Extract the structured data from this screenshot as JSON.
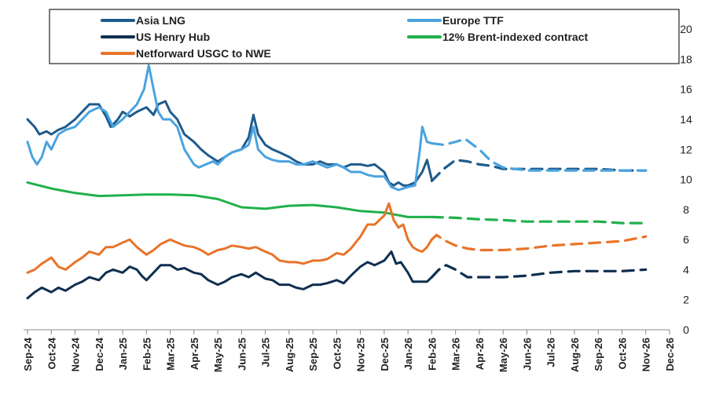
{
  "chart_data": {
    "type": "line",
    "title": "",
    "xlabel": "",
    "ylabel": "",
    "ylim": [
      0,
      21
    ],
    "yticks": [
      0,
      2,
      4,
      6,
      8,
      10,
      12,
      14,
      16,
      18,
      20
    ],
    "xlim": [
      0,
      27
    ],
    "grid": false,
    "legend_position": "top-left",
    "categories": [
      "Sep-24",
      "Oct-24",
      "Nov-24",
      "Dec-24",
      "Jan-25",
      "Feb-25",
      "Mar-25",
      "Apr-25",
      "May-25",
      "Jun-25",
      "Jul-25",
      "Aug-25",
      "Sep-25",
      "Oct-25",
      "Nov-25",
      "Dec-25",
      "Jan-26",
      "Feb-26",
      "Mar-26",
      "Apr-26",
      "May-26",
      "Jun-26",
      "Jul-26",
      "Aug-26",
      "Sep-26",
      "Oct-26",
      "Nov-26",
      "Dec-26"
    ],
    "series": [
      {
        "name": "Asia LNG",
        "color": "#1f5b8c",
        "style": "solid",
        "x": [
          0,
          0.3,
          0.5,
          0.8,
          1.0,
          1.3,
          1.6,
          2.0,
          2.3,
          2.6,
          3.0,
          3.3,
          3.5,
          3.8,
          4.0,
          4.3,
          4.6,
          5.0,
          5.3,
          5.5,
          5.8,
          6.0,
          6.3,
          6.6,
          7.0,
          7.3,
          7.6,
          8.0,
          8.3,
          8.6,
          9.0,
          9.3,
          9.5,
          9.7,
          10.0,
          10.3,
          10.6,
          11.0,
          11.3,
          11.6,
          12.0,
          12.3,
          12.6,
          13.0,
          13.3,
          13.6,
          14.0,
          14.3,
          14.6,
          15.0,
          15.2,
          15.4,
          15.6,
          15.8,
          16.0,
          16.3,
          16.6,
          16.8,
          17.0
        ],
        "y": [
          14.0,
          13.5,
          13.0,
          13.2,
          13.0,
          13.3,
          13.5,
          14.0,
          14.5,
          15.0,
          15.0,
          14.2,
          13.5,
          14.0,
          14.5,
          14.2,
          14.5,
          14.8,
          14.3,
          15.0,
          15.2,
          14.5,
          14.0,
          13.0,
          12.5,
          12.0,
          11.6,
          11.2,
          11.5,
          11.8,
          12.0,
          12.8,
          14.3,
          13.0,
          12.3,
          12.0,
          11.8,
          11.5,
          11.2,
          11.0,
          11.0,
          11.2,
          11.0,
          11.0,
          10.8,
          11.0,
          11.0,
          10.9,
          11.0,
          10.5,
          9.8,
          9.6,
          9.8,
          9.6,
          9.6,
          9.8,
          10.5,
          11.3,
          10.0
        ]
      },
      {
        "name": "Asia LNG (forward)",
        "color": "#1f5b8c",
        "style": "dashed",
        "x": [
          17.0,
          17.5,
          18.0,
          18.5,
          19.0,
          19.5,
          20.0,
          21.0,
          22.0,
          23.0,
          24.0,
          25.0,
          26.0
        ],
        "y": [
          9.9,
          10.7,
          11.3,
          11.2,
          11.0,
          10.9,
          10.7,
          10.7,
          10.7,
          10.7,
          10.7,
          10.6,
          10.6
        ]
      },
      {
        "name": "Europe TTF",
        "color": "#4aa3df",
        "style": "solid",
        "x": [
          0,
          0.2,
          0.4,
          0.6,
          0.8,
          1.0,
          1.3,
          1.6,
          2.0,
          2.3,
          2.6,
          3.0,
          3.3,
          3.6,
          4.0,
          4.3,
          4.6,
          4.9,
          5.1,
          5.3,
          5.5,
          5.7,
          6.0,
          6.3,
          6.6,
          7.0,
          7.2,
          7.5,
          7.8,
          8.0,
          8.3,
          8.6,
          9.0,
          9.3,
          9.5,
          9.7,
          10.0,
          10.3,
          10.6,
          11.0,
          11.3,
          11.6,
          12.0,
          12.3,
          12.6,
          13.0,
          13.3,
          13.6,
          14.0,
          14.3,
          14.6,
          15.0,
          15.3,
          15.6,
          16.0,
          16.3,
          16.5,
          16.6,
          16.8,
          17.0
        ],
        "y": [
          12.5,
          11.5,
          11.0,
          11.5,
          12.5,
          12.0,
          13.0,
          13.3,
          13.5,
          14.0,
          14.5,
          14.8,
          14.5,
          13.5,
          14.0,
          14.5,
          15.0,
          16.0,
          17.6,
          16.0,
          14.5,
          14.0,
          14.0,
          13.5,
          12.0,
          11.0,
          10.8,
          11.0,
          11.2,
          11.0,
          11.5,
          11.8,
          12.0,
          12.3,
          13.5,
          12.0,
          11.5,
          11.3,
          11.2,
          11.2,
          11.0,
          11.0,
          11.2,
          11.0,
          10.8,
          11.0,
          10.8,
          10.5,
          10.5,
          10.3,
          10.2,
          10.2,
          9.5,
          9.3,
          9.5,
          9.6,
          12.0,
          13.5,
          12.5,
          12.4
        ]
      },
      {
        "name": "Europe TTF (forward)",
        "color": "#4aa3df",
        "style": "dashed",
        "x": [
          17.0,
          17.5,
          18.0,
          18.4,
          19.0,
          19.5,
          20.0,
          21.0,
          22.0,
          23.0,
          24.0,
          25.0,
          26.0
        ],
        "y": [
          12.4,
          12.3,
          12.5,
          12.7,
          12.0,
          11.2,
          10.8,
          10.6,
          10.6,
          10.6,
          10.6,
          10.6,
          10.6
        ]
      },
      {
        "name": "US Henry Hub",
        "color": "#0f2f50",
        "style": "solid",
        "x": [
          0,
          0.3,
          0.6,
          1.0,
          1.3,
          1.6,
          2.0,
          2.3,
          2.6,
          3.0,
          3.3,
          3.6,
          4.0,
          4.3,
          4.6,
          4.8,
          5.0,
          5.3,
          5.6,
          6.0,
          6.3,
          6.6,
          7.0,
          7.3,
          7.6,
          8.0,
          8.3,
          8.6,
          9.0,
          9.3,
          9.6,
          10.0,
          10.3,
          10.6,
          11.0,
          11.3,
          11.6,
          12.0,
          12.3,
          12.6,
          13.0,
          13.3,
          13.6,
          14.0,
          14.3,
          14.6,
          15.0,
          15.3,
          15.5,
          15.7,
          16.0,
          16.2,
          16.4,
          16.6,
          16.8,
          17.0
        ],
        "y": [
          2.1,
          2.5,
          2.8,
          2.5,
          2.8,
          2.6,
          3.0,
          3.2,
          3.5,
          3.3,
          3.8,
          4.0,
          3.8,
          4.2,
          4.0,
          3.6,
          3.3,
          3.8,
          4.3,
          4.3,
          4.0,
          4.1,
          3.8,
          3.7,
          3.3,
          3.0,
          3.2,
          3.5,
          3.7,
          3.5,
          3.8,
          3.4,
          3.3,
          3.0,
          3.0,
          2.8,
          2.7,
          3.0,
          3.0,
          3.1,
          3.3,
          3.1,
          3.6,
          4.2,
          4.5,
          4.3,
          4.6,
          5.2,
          4.4,
          4.5,
          3.8,
          3.2,
          3.2,
          3.2,
          3.2,
          3.5
        ]
      },
      {
        "name": "US Henry Hub (forward)",
        "color": "#0f2f50",
        "style": "dashed",
        "x": [
          17.0,
          17.3,
          17.6,
          18.0,
          18.5,
          19.0,
          20.0,
          21.0,
          22.0,
          23.0,
          24.0,
          25.0,
          26.0
        ],
        "y": [
          3.5,
          4.0,
          4.3,
          4.0,
          3.5,
          3.5,
          3.5,
          3.6,
          3.8,
          3.9,
          3.9,
          3.9,
          4.0
        ]
      },
      {
        "name": "12% Brent-indexed contract",
        "color": "#1fb14b",
        "style": "solid",
        "x": [
          0,
          1,
          2,
          3,
          4,
          5,
          6,
          7,
          8,
          9,
          10,
          11,
          12,
          13,
          14,
          15,
          16,
          17
        ],
        "y": [
          9.8,
          9.4,
          9.1,
          8.9,
          8.95,
          9.0,
          9.0,
          8.95,
          8.7,
          8.15,
          8.05,
          8.25,
          8.3,
          8.15,
          7.9,
          7.8,
          7.5,
          7.5
        ]
      },
      {
        "name": "12% Brent-indexed contract (forward)",
        "color": "#1fb14b",
        "style": "dashed",
        "x": [
          17,
          18,
          19,
          20,
          21,
          22,
          23,
          24,
          25,
          26
        ],
        "y": [
          7.5,
          7.45,
          7.35,
          7.3,
          7.2,
          7.2,
          7.2,
          7.2,
          7.1,
          7.1
        ]
      },
      {
        "name": "Netforward USGC to NWE",
        "color": "#e8742a",
        "style": "solid",
        "x": [
          0,
          0.3,
          0.6,
          1.0,
          1.3,
          1.6,
          2.0,
          2.3,
          2.6,
          3.0,
          3.3,
          3.6,
          4.0,
          4.3,
          4.6,
          5.0,
          5.3,
          5.6,
          6.0,
          6.3,
          6.6,
          7.0,
          7.3,
          7.6,
          8.0,
          8.3,
          8.6,
          9.0,
          9.3,
          9.6,
          10.0,
          10.3,
          10.6,
          11.0,
          11.3,
          11.6,
          12.0,
          12.3,
          12.6,
          13.0,
          13.3,
          13.6,
          14.0,
          14.3,
          14.6,
          15.0,
          15.2,
          15.4,
          15.6,
          15.8,
          16.0,
          16.2,
          16.4,
          16.6,
          16.8,
          17.0
        ],
        "y": [
          3.8,
          4.0,
          4.4,
          4.8,
          4.2,
          4.0,
          4.5,
          4.8,
          5.2,
          5.0,
          5.5,
          5.5,
          5.8,
          6.0,
          5.5,
          5.0,
          5.3,
          5.7,
          6.0,
          5.8,
          5.6,
          5.5,
          5.3,
          5.0,
          5.3,
          5.4,
          5.6,
          5.5,
          5.4,
          5.5,
          5.2,
          5.0,
          4.6,
          4.5,
          4.5,
          4.4,
          4.6,
          4.6,
          4.7,
          5.1,
          5.0,
          5.4,
          6.2,
          7.0,
          7.0,
          7.6,
          8.4,
          7.3,
          6.8,
          7.0,
          6.0,
          5.5,
          5.3,
          5.2,
          5.5,
          6.0
        ]
      },
      {
        "name": "Netforward USGC to NWE (forward)",
        "color": "#e8742a",
        "style": "dashed",
        "x": [
          17.0,
          17.2,
          17.6,
          18.0,
          18.5,
          19.0,
          20.0,
          21.0,
          22.0,
          23.0,
          24.0,
          25.0,
          26.0
        ],
        "y": [
          6.0,
          6.3,
          5.9,
          5.6,
          5.4,
          5.3,
          5.3,
          5.4,
          5.6,
          5.7,
          5.8,
          5.9,
          6.2
        ]
      }
    ],
    "legend": [
      {
        "label": "Asia LNG",
        "color": "#1f5b8c"
      },
      {
        "label": "Europe TTF",
        "color": "#4aa3df"
      },
      {
        "label": "US Henry Hub",
        "color": "#0f2f50"
      },
      {
        "label": "12% Brent-indexed contract",
        "color": "#1fb14b"
      },
      {
        "label": "Netforward USGC to NWE",
        "color": "#e8742a"
      }
    ]
  }
}
